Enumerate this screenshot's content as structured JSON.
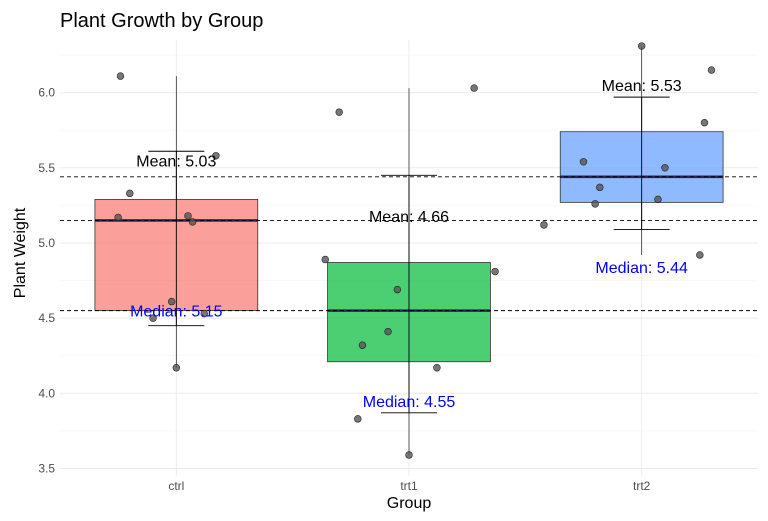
{
  "chart_data": {
    "type": "boxplot",
    "title": "Plant Growth by Group",
    "xlabel": "Group",
    "ylabel": "Plant Weight",
    "ylim": [
      3.45,
      6.35
    ],
    "yticks": [
      "3.5",
      "4.0",
      "4.5",
      "5.0",
      "5.5",
      "6.0"
    ],
    "grid": true,
    "categories": [
      "ctrl",
      "trt1",
      "trt2"
    ],
    "groups": [
      {
        "name": "ctrl",
        "color": "#F8766D",
        "q1": 4.55,
        "median": 5.15,
        "q3": 5.29,
        "min": 4.17,
        "max": 6.11,
        "mean": 5.03,
        "sd": 0.58,
        "mean_label": "Mean: 5.03",
        "median_label": "Median: 5.15",
        "points": [
          4.17,
          5.58,
          5.18,
          6.11,
          4.5,
          4.61,
          5.17,
          4.53,
          5.33,
          5.14
        ],
        "jitter": [
          0.0,
          0.17,
          0.05,
          -0.24,
          -0.1,
          -0.02,
          -0.25,
          0.12,
          -0.2,
          0.07
        ]
      },
      {
        "name": "trt1",
        "color": "#00BA38",
        "q1": 4.21,
        "median": 4.55,
        "q3": 4.87,
        "min": 3.59,
        "max": 6.03,
        "mean": 4.66,
        "sd": 0.79,
        "mean_label": "Mean: 4.66",
        "median_label": "Median: 4.55",
        "points": [
          4.81,
          4.17,
          4.41,
          3.59,
          5.87,
          3.83,
          6.03,
          4.89,
          4.32,
          4.69
        ],
        "jitter": [
          0.37,
          0.12,
          -0.09,
          0.0,
          -0.3,
          -0.22,
          0.28,
          -0.36,
          -0.2,
          -0.05
        ]
      },
      {
        "name": "trt2",
        "color": "#619CFF",
        "q1": 5.27,
        "median": 5.44,
        "q3": 5.74,
        "min": 4.92,
        "max": 6.31,
        "mean": 5.53,
        "sd": 0.44,
        "mean_label": "Mean: 5.53",
        "median_label": "Median: 5.44",
        "points": [
          6.31,
          5.12,
          5.54,
          5.5,
          5.37,
          5.29,
          4.92,
          6.15,
          5.8,
          5.26
        ],
        "jitter": [
          0.0,
          -0.42,
          -0.25,
          0.1,
          -0.18,
          0.07,
          0.25,
          0.3,
          0.27,
          -0.2
        ]
      }
    ],
    "reference_lines": [
      4.55,
      5.15,
      5.44
    ]
  }
}
